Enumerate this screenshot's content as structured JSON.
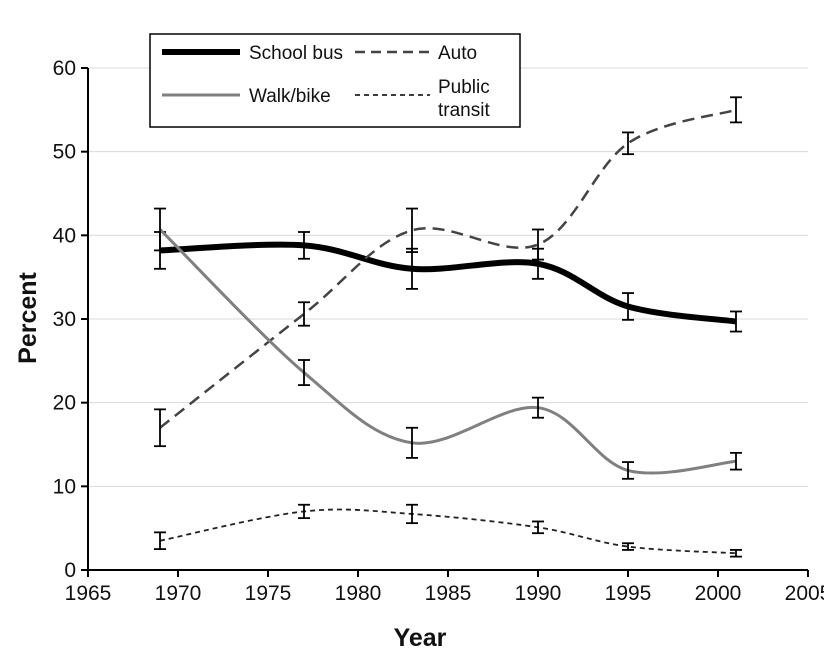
{
  "chart_data": {
    "type": "line",
    "title": "",
    "xlabel": "Year",
    "ylabel": "Percent",
    "xlim": [
      1965,
      2005
    ],
    "ylim": [
      0,
      60
    ],
    "xticks": [
      "1965",
      "1970",
      "1975",
      "1980",
      "1985",
      "1990",
      "1995",
      "2000",
      "2005"
    ],
    "yticks": [
      "0",
      "10",
      "20",
      "30",
      "40",
      "50",
      "60"
    ],
    "grid": "horizontal",
    "legend_position": "top-left",
    "series": [
      {
        "name": "School bus",
        "style": "thick-solid",
        "color": "#000000",
        "x": [
          1969,
          1977,
          1983,
          1990,
          1995,
          2001
        ],
        "y": [
          38.2,
          38.8,
          36.0,
          36.6,
          31.5,
          29.7
        ],
        "err": [
          2.2,
          1.6,
          2.4,
          1.8,
          1.6,
          1.2
        ]
      },
      {
        "name": "Auto",
        "style": "long-dash",
        "color": "#444444",
        "x": [
          1969,
          1977,
          1983,
          1990,
          1995,
          2001
        ],
        "y": [
          17.0,
          30.6,
          40.6,
          38.9,
          51.0,
          55.0
        ],
        "err": [
          2.2,
          1.4,
          2.6,
          1.8,
          1.3,
          1.5
        ]
      },
      {
        "name": "Walk/bike",
        "style": "gray-solid",
        "color": "#808080",
        "x": [
          1969,
          1977,
          1983,
          1990,
          1995,
          2001
        ],
        "y": [
          40.7,
          23.6,
          15.2,
          19.4,
          11.9,
          13.0
        ],
        "err": [
          2.5,
          1.5,
          1.8,
          1.2,
          1.0,
          1.0
        ]
      },
      {
        "name": "Public transit",
        "style": "short-dash",
        "color": "#222222",
        "x": [
          1969,
          1977,
          1983,
          1990,
          1995,
          2001
        ],
        "y": [
          3.5,
          7.0,
          6.7,
          5.1,
          2.8,
          2.0
        ],
        "err": [
          1.0,
          0.8,
          1.1,
          0.7,
          0.4,
          0.4
        ]
      }
    ],
    "legend": {
      "entries": [
        "School bus",
        "Auto",
        "Walk/bike",
        "Public transit"
      ],
      "transit_lines": [
        "Public",
        "transit"
      ]
    }
  }
}
